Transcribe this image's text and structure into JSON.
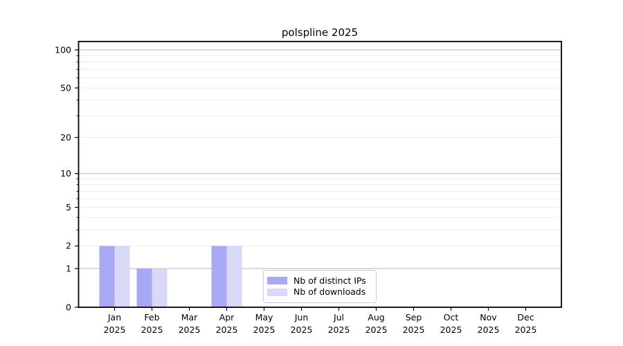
{
  "chart_data": {
    "type": "bar",
    "title": "polspline 2025",
    "xlabel": "",
    "ylabel": "",
    "categories": [
      "Jan",
      "Feb",
      "Mar",
      "Apr",
      "May",
      "Jun",
      "Jul",
      "Aug",
      "Sep",
      "Oct",
      "Nov",
      "Dec"
    ],
    "category_year": "2025",
    "series": [
      {
        "name": "Nb of distinct IPs",
        "color": "#a8a8f4",
        "values": [
          2,
          1,
          0,
          2,
          0,
          0,
          0,
          0,
          0,
          0,
          0,
          0
        ]
      },
      {
        "name": "Nb of downloads",
        "color": "#d8d8f8",
        "values": [
          2,
          1,
          0,
          2,
          0,
          0,
          0,
          0,
          0,
          0,
          0,
          0
        ]
      }
    ],
    "yscale": "log1p",
    "ylim": [
      0,
      116
    ],
    "yticks": [
      0,
      1,
      2,
      5,
      10,
      20,
      50,
      100
    ],
    "major_gridlines": [
      1,
      10,
      100
    ],
    "minor_gridlines": [
      2,
      3,
      4,
      5,
      6,
      7,
      8,
      9,
      20,
      30,
      40,
      50,
      60,
      70,
      80,
      90
    ],
    "grid": true,
    "legend_position": "inside-bottom-center",
    "colors": {
      "spine": "#000000",
      "tick": "#000000",
      "text": "#000000",
      "major_grid": "#c6c6c6",
      "minor_grid": "#ececec",
      "background": "#ffffff",
      "legend_border": "#cccccc"
    }
  }
}
